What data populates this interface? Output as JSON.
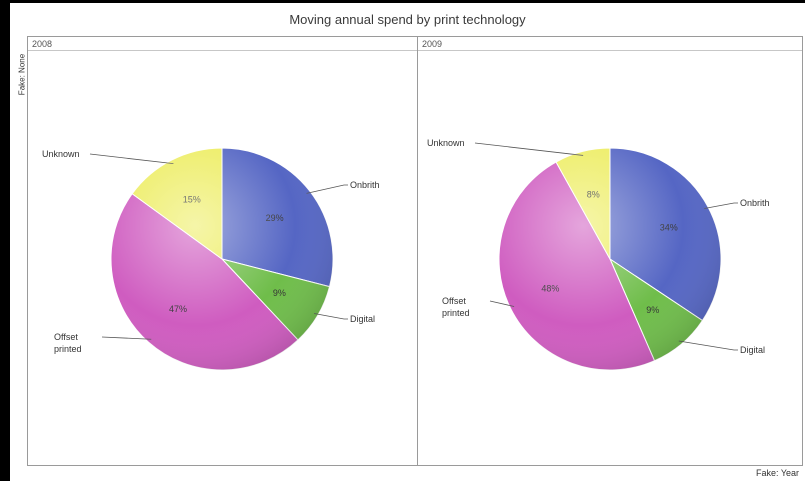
{
  "chart_data": {
    "type": "pie",
    "title": "Moving annual spend by print technology",
    "row_field_label": "Fake: None",
    "column_field_label": "Fake: Year",
    "panels": [
      {
        "label": "2008",
        "slices": [
          {
            "name": "Onbrith",
            "value": 29,
            "label": "29%",
            "color": "#5566c4"
          },
          {
            "name": "Digital",
            "value": 9,
            "label": "9%",
            "color": "#6fbd4a"
          },
          {
            "name": "Offset printed",
            "value": 47,
            "label": "47%",
            "color": "#cf5cc0"
          },
          {
            "name": "Unknown",
            "value": 15,
            "label": "15%",
            "color": "#eded62"
          }
        ]
      },
      {
        "label": "2009",
        "slices": [
          {
            "name": "Onbrith",
            "value": 34,
            "label": "34%",
            "color": "#5566c4"
          },
          {
            "name": "Digital",
            "value": 9,
            "label": "9%",
            "color": "#6fbd4a"
          },
          {
            "name": "Offset printed",
            "value": 48,
            "label": "48%",
            "color": "#cf5cc0"
          },
          {
            "name": "Unknown",
            "value": 8,
            "label": "8%",
            "color": "#eded62"
          }
        ]
      }
    ]
  }
}
